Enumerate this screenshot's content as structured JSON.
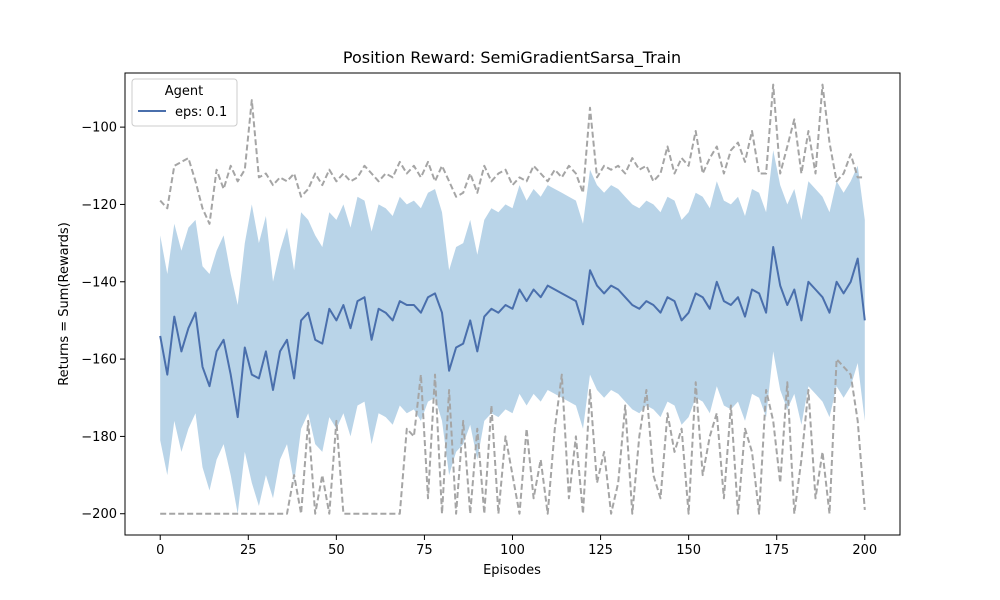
{
  "chart_data": {
    "type": "line",
    "title": "Position Reward: SemiGradientSarsa_Train",
    "xlabel": "Episodes",
    "ylabel": "Returns = Sum(Rewards)",
    "xlim": [
      -10,
      210
    ],
    "ylim": [
      -205.5,
      -86
    ],
    "xticks": [
      0,
      25,
      50,
      75,
      100,
      125,
      150,
      175,
      200
    ],
    "yticks": [
      -200,
      -180,
      -160,
      -140,
      -120,
      -100
    ],
    "grid": false,
    "legend": {
      "title": "Agent",
      "placement": "top-left",
      "entries": [
        "eps: 0.1"
      ]
    },
    "colors": {
      "mean": "#4a6fac",
      "band": "#b9d4e8",
      "minmax": "#a5a5a5"
    },
    "series": [
      {
        "name": "eps: 0.1",
        "role": "mean",
        "x": [
          0,
          2,
          4,
          6,
          8,
          10,
          12,
          14,
          16,
          18,
          20,
          22,
          24,
          26,
          28,
          30,
          32,
          34,
          36,
          38,
          40,
          42,
          44,
          46,
          48,
          50,
          52,
          54,
          56,
          58,
          60,
          62,
          64,
          66,
          68,
          70,
          72,
          74,
          76,
          78,
          80,
          82,
          84,
          86,
          88,
          90,
          92,
          94,
          96,
          98,
          100,
          102,
          104,
          106,
          108,
          110,
          112,
          114,
          116,
          118,
          120,
          122,
          124,
          126,
          128,
          130,
          132,
          134,
          136,
          138,
          140,
          142,
          144,
          146,
          148,
          150,
          152,
          154,
          156,
          158,
          160,
          162,
          164,
          166,
          168,
          170,
          172,
          174,
          176,
          178,
          180,
          182,
          184,
          186,
          188,
          190,
          192,
          194,
          196,
          198,
          200
        ],
        "y": [
          -154,
          -164,
          -149,
          -158,
          -152,
          -148,
          -162,
          -167,
          -158,
          -155,
          -164,
          -175,
          -157,
          -164,
          -165,
          -158,
          -168,
          -158,
          -155,
          -165,
          -150,
          -148,
          -155,
          -156,
          -147,
          -150,
          -146,
          -152,
          -145,
          -144,
          -155,
          -147,
          -148,
          -150,
          -145,
          -146,
          -146,
          -148,
          -144,
          -143,
          -148,
          -163,
          -157,
          -156,
          -150,
          -158,
          -149,
          -147,
          -148,
          -146,
          -147,
          -142,
          -145,
          -142,
          -144,
          -141,
          -142,
          -143,
          -144,
          -145,
          -151,
          -137,
          -141,
          -143,
          -141,
          -142,
          -144,
          -146,
          -147,
          -145,
          -146,
          -148,
          -144,
          -145,
          -150,
          -148,
          -143,
          -144,
          -147,
          -140,
          -145,
          -146,
          -144,
          -149,
          -142,
          -143,
          -148,
          -131,
          -141,
          -146,
          -142,
          -150,
          -140,
          -142,
          -144,
          -148,
          -140,
          -143,
          -140,
          -134,
          -150
        ]
      },
      {
        "name": "",
        "role": "std-upper",
        "x": [
          0,
          2,
          4,
          6,
          8,
          10,
          12,
          14,
          16,
          18,
          20,
          22,
          24,
          26,
          28,
          30,
          32,
          34,
          36,
          38,
          40,
          42,
          44,
          46,
          48,
          50,
          52,
          54,
          56,
          58,
          60,
          62,
          64,
          66,
          68,
          70,
          72,
          74,
          76,
          78,
          80,
          82,
          84,
          86,
          88,
          90,
          92,
          94,
          96,
          98,
          100,
          102,
          104,
          106,
          108,
          110,
          112,
          114,
          116,
          118,
          120,
          122,
          124,
          126,
          128,
          130,
          132,
          134,
          136,
          138,
          140,
          142,
          144,
          146,
          148,
          150,
          152,
          154,
          156,
          158,
          160,
          162,
          164,
          166,
          168,
          170,
          172,
          174,
          176,
          178,
          180,
          182,
          184,
          186,
          188,
          190,
          192,
          194,
          196,
          198,
          200
        ],
        "y": [
          -128,
          -138,
          -125,
          -132,
          -126,
          -124,
          -136,
          -138,
          -132,
          -128,
          -138,
          -146,
          -130,
          -120,
          -130,
          -123,
          -140,
          -132,
          -126,
          -137,
          -122,
          -124,
          -128,
          -131,
          -122,
          -124,
          -120,
          -126,
          -118,
          -119,
          -127,
          -120,
          -121,
          -123,
          -118,
          -120,
          -119,
          -121,
          -117,
          -116,
          -122,
          -137,
          -131,
          -130,
          -124,
          -133,
          -124,
          -121,
          -122,
          -120,
          -121,
          -115,
          -119,
          -116,
          -118,
          -115,
          -116,
          -117,
          -118,
          -119,
          -125,
          -111,
          -115,
          -117,
          -115,
          -116,
          -118,
          -120,
          -121,
          -119,
          -120,
          -122,
          -118,
          -119,
          -124,
          -122,
          -117,
          -118,
          -121,
          -114,
          -119,
          -120,
          -118,
          -123,
          -116,
          -117,
          -122,
          -106,
          -115,
          -120,
          -116,
          -124,
          -114,
          -116,
          -118,
          -122,
          -114,
          -117,
          -114,
          -110,
          -124
        ]
      },
      {
        "name": "",
        "role": "std-lower",
        "x": [
          0,
          2,
          4,
          6,
          8,
          10,
          12,
          14,
          16,
          18,
          20,
          22,
          24,
          26,
          28,
          30,
          32,
          34,
          36,
          38,
          40,
          42,
          44,
          46,
          48,
          50,
          52,
          54,
          56,
          58,
          60,
          62,
          64,
          66,
          68,
          70,
          72,
          74,
          76,
          78,
          80,
          82,
          84,
          86,
          88,
          90,
          92,
          94,
          96,
          98,
          100,
          102,
          104,
          106,
          108,
          110,
          112,
          114,
          116,
          118,
          120,
          122,
          124,
          126,
          128,
          130,
          132,
          134,
          136,
          138,
          140,
          142,
          144,
          146,
          148,
          150,
          152,
          154,
          156,
          158,
          160,
          162,
          164,
          166,
          168,
          170,
          172,
          174,
          176,
          178,
          180,
          182,
          184,
          186,
          188,
          190,
          192,
          194,
          196,
          198,
          200
        ],
        "y": [
          -181,
          -190,
          -176,
          -184,
          -178,
          -174,
          -188,
          -194,
          -186,
          -182,
          -190,
          -200,
          -184,
          -192,
          -198,
          -190,
          -196,
          -186,
          -182,
          -192,
          -178,
          -174,
          -182,
          -184,
          -175,
          -178,
          -174,
          -180,
          -172,
          -171,
          -182,
          -174,
          -175,
          -177,
          -172,
          -174,
          -173,
          -176,
          -171,
          -170,
          -176,
          -190,
          -184,
          -182,
          -177,
          -186,
          -176,
          -174,
          -175,
          -173,
          -174,
          -169,
          -172,
          -169,
          -171,
          -168,
          -169,
          -170,
          -171,
          -172,
          -178,
          -164,
          -168,
          -170,
          -168,
          -169,
          -171,
          -173,
          -174,
          -172,
          -173,
          -175,
          -171,
          -172,
          -177,
          -175,
          -170,
          -171,
          -174,
          -167,
          -172,
          -173,
          -171,
          -176,
          -169,
          -170,
          -175,
          -158,
          -168,
          -173,
          -169,
          -177,
          -167,
          -169,
          -171,
          -175,
          -167,
          -170,
          -167,
          -161,
          -176
        ]
      },
      {
        "name": "",
        "role": "max",
        "x": [
          0,
          2,
          4,
          6,
          8,
          10,
          12,
          14,
          16,
          18,
          20,
          22,
          24,
          26,
          28,
          30,
          32,
          34,
          36,
          38,
          40,
          42,
          44,
          46,
          48,
          50,
          52,
          54,
          56,
          58,
          60,
          62,
          64,
          66,
          68,
          70,
          72,
          74,
          76,
          78,
          80,
          82,
          84,
          86,
          88,
          90,
          92,
          94,
          96,
          98,
          100,
          102,
          104,
          106,
          108,
          110,
          112,
          114,
          116,
          118,
          120,
          122,
          124,
          126,
          128,
          130,
          132,
          134,
          136,
          138,
          140,
          142,
          144,
          146,
          148,
          150,
          152,
          154,
          156,
          158,
          160,
          162,
          164,
          166,
          168,
          170,
          172,
          174,
          176,
          178,
          180,
          182,
          184,
          186,
          188,
          190,
          192,
          194,
          196,
          198,
          200
        ],
        "y": [
          -119,
          -121,
          -110,
          -109,
          -108,
          -114,
          -121,
          -125,
          -111,
          -116,
          -110,
          -114,
          -111,
          -93,
          -113,
          -112,
          -115,
          -113,
          -114,
          -112,
          -118,
          -116,
          -112,
          -115,
          -111,
          -114,
          -112,
          -114,
          -113,
          -110,
          -112,
          -114,
          -112,
          -113,
          -109,
          -112,
          -110,
          -113,
          -109,
          -114,
          -110,
          -114,
          -118,
          -117,
          -112,
          -117,
          -110,
          -114,
          -112,
          -111,
          -115,
          -113,
          -114,
          -110,
          -112,
          -114,
          -111,
          -113,
          -110,
          -112,
          -117,
          -95,
          -113,
          -110,
          -111,
          -110,
          -112,
          -108,
          -111,
          -110,
          -114,
          -112,
          -105,
          -112,
          -108,
          -110,
          -101,
          -112,
          -108,
          -105,
          -112,
          -106,
          -104,
          -109,
          -101,
          -112,
          -112,
          -89,
          -112,
          -105,
          -98,
          -112,
          -101,
          -112,
          -89,
          -104,
          -114,
          -112,
          -107,
          -113,
          -113
        ]
      },
      {
        "name": "",
        "role": "min",
        "x": [
          0,
          2,
          4,
          6,
          8,
          10,
          12,
          14,
          16,
          18,
          20,
          22,
          24,
          26,
          28,
          30,
          32,
          34,
          36,
          38,
          40,
          42,
          44,
          46,
          48,
          50,
          52,
          54,
          56,
          58,
          60,
          62,
          64,
          66,
          68,
          70,
          72,
          74,
          76,
          78,
          80,
          82,
          84,
          86,
          88,
          90,
          92,
          94,
          96,
          98,
          100,
          102,
          104,
          106,
          108,
          110,
          112,
          114,
          116,
          118,
          120,
          122,
          124,
          126,
          128,
          130,
          132,
          134,
          136,
          138,
          140,
          142,
          144,
          146,
          148,
          150,
          152,
          154,
          156,
          158,
          160,
          162,
          164,
          166,
          168,
          170,
          172,
          174,
          176,
          178,
          180,
          182,
          184,
          186,
          188,
          190,
          192,
          194,
          196,
          198,
          200
        ],
        "y": [
          -200,
          -200,
          -200,
          -200,
          -200,
          -200,
          -200,
          -200,
          -200,
          -200,
          -200,
          -200,
          -200,
          -200,
          -200,
          -200,
          -200,
          -200,
          -200,
          -190,
          -200,
          -176,
          -200,
          -190,
          -200,
          -176,
          -200,
          -200,
          -200,
          -200,
          -200,
          -200,
          -200,
          -200,
          -200,
          -178,
          -180,
          -164,
          -196,
          -164,
          -200,
          -168,
          -200,
          -176,
          -200,
          -178,
          -200,
          -172,
          -200,
          -180,
          -190,
          -200,
          -178,
          -196,
          -186,
          -200,
          -178,
          -164,
          -196,
          -180,
          -200,
          -168,
          -192,
          -184,
          -200,
          -192,
          -172,
          -200,
          -180,
          -168,
          -190,
          -196,
          -174,
          -184,
          -178,
          -200,
          -166,
          -190,
          -180,
          -174,
          -196,
          -172,
          -200,
          -178,
          -184,
          -200,
          -168,
          -176,
          -192,
          -166,
          -200,
          -186,
          -168,
          -196,
          -184,
          -200,
          -160,
          -162,
          -164,
          -176,
          -199
        ]
      }
    ]
  }
}
